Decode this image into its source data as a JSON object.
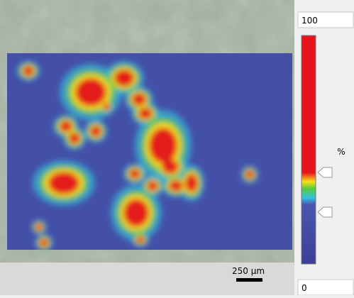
{
  "colorbar": {
    "max_label": "100",
    "min_label": "0",
    "unit": "%"
  },
  "scale_bar": {
    "label": "250 µm"
  }
}
